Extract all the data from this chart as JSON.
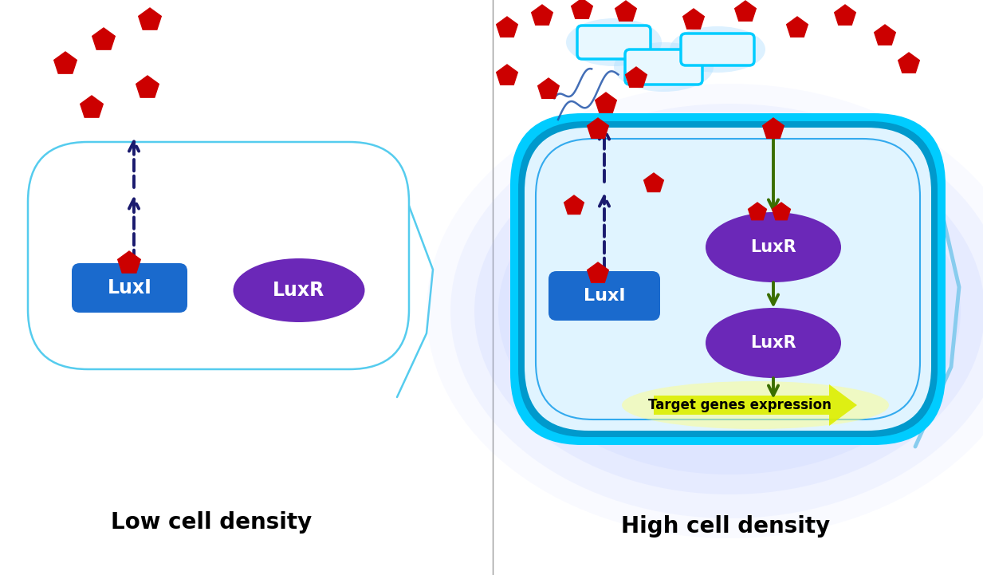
{
  "bg_color": "#ffffff",
  "left_label": "Low cell density",
  "right_label": "High cell density",
  "cell_outline_color": "#55ccee",
  "cell_fill_color": "#ffffff",
  "luxI_color": "#1a6acd",
  "luxR_color": "#6b28b8",
  "luxI_text": "LuxI",
  "luxR_text": "LuxR",
  "pentagon_color": "#cc0000",
  "arrow_color": "#1a1a6e",
  "dark_green": "#3a6e00",
  "target_gene_color": "#ffff99",
  "target_gene_text": "Target genes expression",
  "target_gene_text_color": "#000000",
  "glow_color": "#aabbff",
  "cyan_thick": "#00ccff",
  "cyan_inner": "#33aaee"
}
